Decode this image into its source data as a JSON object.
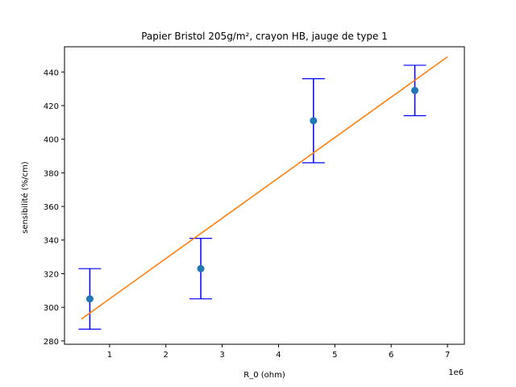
{
  "chart_data": {
    "type": "scatter",
    "title": "Papier Bristol 205g/m², crayon HB, jauge de type 1",
    "xlabel": "R_0 (ohm)",
    "ylabel": "sensibilité (%/cm)",
    "x_offset_label": "1e6",
    "xlim": [
      0.2,
      7.3
    ],
    "ylim": [
      278,
      455
    ],
    "grid": false,
    "x_ticks": [
      1,
      2,
      3,
      4,
      5,
      6,
      7
    ],
    "x_tick_labels": [
      "1",
      "2",
      "3",
      "4",
      "5",
      "6",
      "7"
    ],
    "y_ticks": [
      280,
      300,
      320,
      340,
      360,
      380,
      400,
      420,
      440
    ],
    "y_tick_labels": [
      "280",
      "300",
      "320",
      "340",
      "360",
      "380",
      "400",
      "420",
      "440"
    ],
    "series": [
      {
        "kind": "errorbar",
        "color": "#1f77b4",
        "error_color": "#0000ff",
        "points": [
          {
            "x": 0.65,
            "y": 305,
            "ylow": 287,
            "yhigh": 323
          },
          {
            "x": 2.62,
            "y": 323,
            "ylow": 305,
            "yhigh": 341
          },
          {
            "x": 4.62,
            "y": 411,
            "ylow": 386,
            "yhigh": 436
          },
          {
            "x": 6.42,
            "y": 429,
            "ylow": 414,
            "yhigh": 444
          }
        ]
      },
      {
        "kind": "line",
        "color": "#ff7f0e",
        "x": [
          0.5,
          7.0
        ],
        "y": [
          293,
          449
        ]
      }
    ]
  }
}
